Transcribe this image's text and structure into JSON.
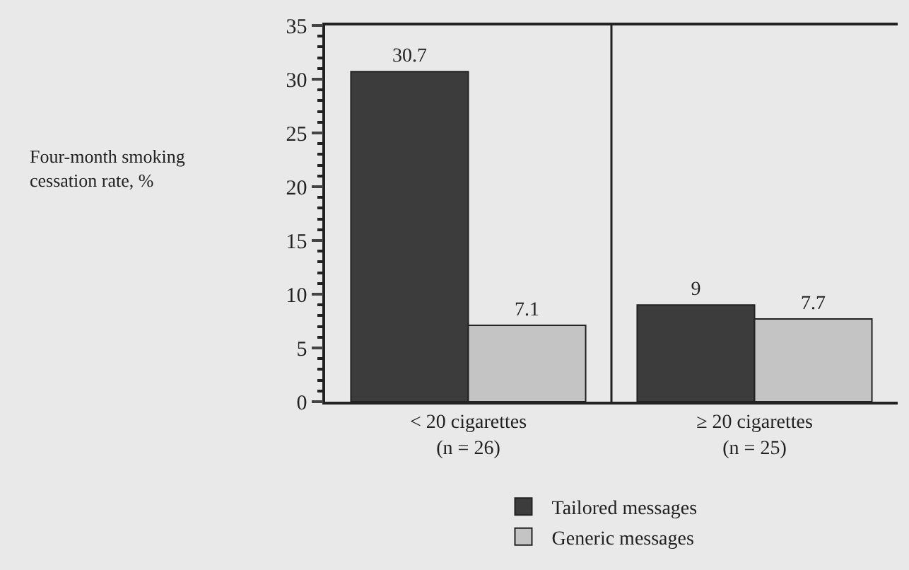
{
  "chart_data": {
    "type": "bar",
    "annotations": [
      "Four-month smoking\ncessation rate, %"
    ],
    "categories": [
      "< 20 cigarettes\n(n = 26)",
      "≥ 20 cigarettes\n(n = 25)"
    ],
    "series": [
      {
        "name": "Tailored messages",
        "color": "#3c3c3c",
        "values": [
          30.7,
          9
        ]
      },
      {
        "name": "Generic messages",
        "color": "#c4c4c4",
        "values": [
          7.1,
          7.7
        ]
      }
    ],
    "ylim": [
      0,
      35
    ],
    "yticks": [
      0,
      5,
      10,
      15,
      20,
      25,
      30,
      35
    ],
    "data_labels": true,
    "legend": "bottom",
    "grid": false
  }
}
